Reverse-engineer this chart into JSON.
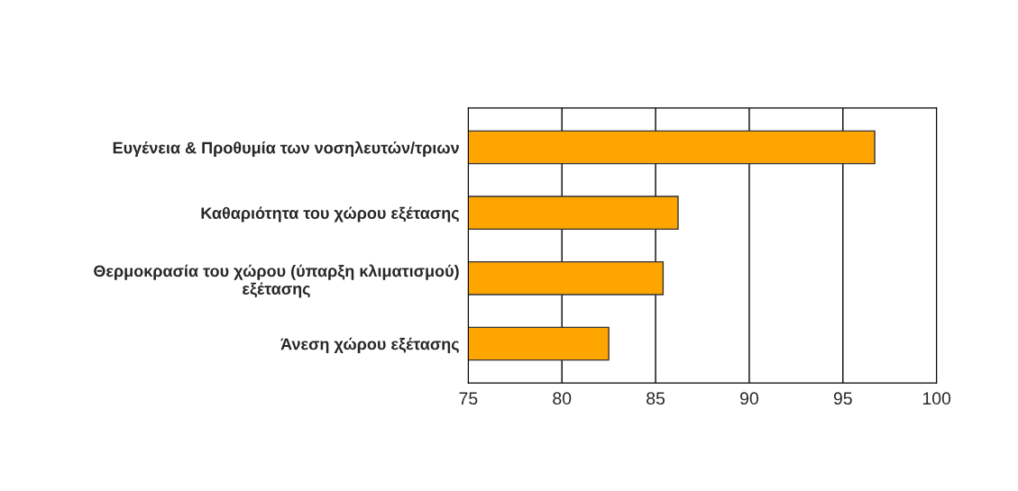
{
  "chart_data": {
    "type": "bar",
    "orientation": "horizontal",
    "categories": [
      "Ευγένεια & Προθυμία των νοσηλευτών/τριων",
      "Καθαριότητα του χώρου εξέτασης",
      "Θερμοκρασία του χώρου (ύπαρξη κλιματισμού)\nεξέτασης",
      "Άνεση χώρου εξέτασης"
    ],
    "values": [
      96.7,
      86.2,
      85.4,
      82.5
    ],
    "color": "#ffa500",
    "xlim": [
      75,
      100
    ],
    "xticks": [
      75,
      80,
      85,
      90,
      95,
      100
    ],
    "grid": "x"
  }
}
